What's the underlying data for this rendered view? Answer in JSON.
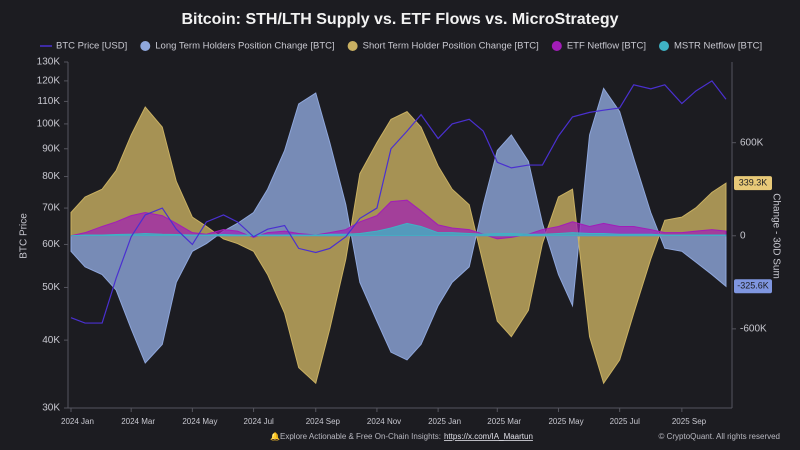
{
  "chart_data": {
    "type": "area",
    "title": "Bitcoin: STH/LTH Supply vs. ETF Flows vs. MicroStrategy",
    "y_label": "BTC Price",
    "y2_label": "Change - 30D Sum",
    "footer": "Explore Actionable & Free On-Chain Insights:",
    "footer_link": "https://x.com/IA_Maartun",
    "copyright": "© CryptoQuant. All rights reserved",
    "log_y": true,
    "x": [
      "2024-01-01",
      "2024-01-15",
      "2024-02-01",
      "2024-02-15",
      "2024-03-01",
      "2024-03-15",
      "2024-04-01",
      "2024-04-15",
      "2024-05-01",
      "2024-05-15",
      "2024-06-01",
      "2024-06-15",
      "2024-07-01",
      "2024-07-15",
      "2024-08-01",
      "2024-08-15",
      "2024-09-01",
      "2024-09-15",
      "2024-10-01",
      "2024-10-15",
      "2024-11-01",
      "2024-11-15",
      "2024-12-01",
      "2024-12-15",
      "2025-01-01",
      "2025-01-15",
      "2025-02-01",
      "2025-02-15",
      "2025-03-01",
      "2025-03-15",
      "2025-04-01",
      "2025-04-15",
      "2025-05-01",
      "2025-05-15",
      "2025-06-01",
      "2025-06-15",
      "2025-07-01",
      "2025-07-15",
      "2025-08-01",
      "2025-08-15",
      "2025-09-01",
      "2025-09-15",
      "2025-10-01",
      "2025-10-15"
    ],
    "xlim": [
      "2023-12-29",
      "2025-10-21"
    ],
    "xticks": [
      {
        "value": "2024-01-01",
        "label": "2024 Jan"
      },
      {
        "value": "2024-03-01",
        "label": "2024 Mar"
      },
      {
        "value": "2024-05-01",
        "label": "2024 May"
      },
      {
        "value": "2024-07-01",
        "label": "2024 Jul"
      },
      {
        "value": "2024-09-01",
        "label": "2024 Sep"
      },
      {
        "value": "2024-11-01",
        "label": "2024 Nov"
      },
      {
        "value": "2025-01-01",
        "label": "2025 Jan"
      },
      {
        "value": "2025-03-01",
        "label": "2025 Mar"
      },
      {
        "value": "2025-05-01",
        "label": "2025 May"
      },
      {
        "value": "2025-07-01",
        "label": "2025 Jul"
      },
      {
        "value": "2025-09-01",
        "label": "2025 Sep"
      }
    ],
    "ylim": [
      30000,
      130000
    ],
    "yticks": [
      {
        "value": 30000,
        "label": "30K"
      },
      {
        "value": 40000,
        "label": "40K"
      },
      {
        "value": 50000,
        "label": "50K"
      },
      {
        "value": 60000,
        "label": "60K"
      },
      {
        "value": 70000,
        "label": "70K"
      },
      {
        "value": 80000,
        "label": "80K"
      },
      {
        "value": 90000,
        "label": "90K"
      },
      {
        "value": 100000,
        "label": "100K"
      },
      {
        "value": 110000,
        "label": "110K"
      },
      {
        "value": 120000,
        "label": "120K"
      },
      {
        "value": 130000,
        "label": "130K"
      }
    ],
    "y2lim": [
      -1110000,
      1120000
    ],
    "y2ticks": [
      {
        "value": -600000,
        "label": "-600K"
      },
      0,
      {
        "value": 600000,
        "label": "600K"
      }
    ],
    "series": [
      {
        "name": "BTC Price [USD]",
        "color": "#4a30d0",
        "axis": "y",
        "kind": "line",
        "values": [
          44000,
          43000,
          43000,
          52000,
          62000,
          68000,
          70000,
          64000,
          60000,
          66000,
          68000,
          66000,
          62000,
          64000,
          65000,
          59000,
          58000,
          59000,
          62000,
          67000,
          70000,
          90000,
          97000,
          104000,
          94000,
          100000,
          102000,
          97000,
          85000,
          83000,
          84000,
          84000,
          95000,
          103000,
          105000,
          106000,
          107000,
          118000,
          116000,
          118000,
          109000,
          115000,
          120000,
          111000
        ]
      },
      {
        "name": "Long Term Holders Position Change [BTC]",
        "color": "#8fa7dc",
        "axis": "y2",
        "kind": "area",
        "values": [
          -100000,
          -200000,
          -250000,
          -350000,
          -600000,
          -820000,
          -700000,
          -300000,
          -100000,
          -50000,
          30000,
          80000,
          150000,
          300000,
          550000,
          850000,
          920000,
          600000,
          200000,
          -300000,
          -550000,
          -750000,
          -800000,
          -700000,
          -450000,
          -300000,
          -200000,
          200000,
          550000,
          650000,
          480000,
          80000,
          -250000,
          -450000,
          650000,
          950000,
          800000,
          500000,
          150000,
          -80000,
          -100000,
          -170000,
          -250000,
          -325600
        ],
        "value_labels": [
          null,
          null,
          null,
          null,
          null,
          null,
          null,
          null,
          null,
          null,
          null,
          null,
          null,
          null,
          null,
          null,
          null,
          null,
          null,
          null,
          null,
          null,
          null,
          null,
          null,
          null,
          null,
          null,
          null,
          null,
          null,
          null,
          null,
          null,
          null,
          null,
          null,
          null,
          null,
          null,
          null,
          null,
          null,
          "-325.6K"
        ]
      },
      {
        "name": "Short Term Holder Position Change [BTC]",
        "color": "#c9b062",
        "axis": "y2",
        "kind": "area",
        "values": [
          150000,
          250000,
          300000,
          420000,
          650000,
          830000,
          700000,
          350000,
          120000,
          60000,
          -20000,
          -50000,
          -100000,
          -250000,
          -500000,
          -850000,
          -950000,
          -600000,
          -150000,
          400000,
          600000,
          750000,
          800000,
          700000,
          450000,
          300000,
          200000,
          -180000,
          -550000,
          -650000,
          -480000,
          -50000,
          250000,
          300000,
          -650000,
          -950000,
          -800000,
          -500000,
          -150000,
          100000,
          120000,
          180000,
          280000,
          339300
        ],
        "value_labels": [
          null,
          null,
          null,
          null,
          null,
          null,
          null,
          null,
          null,
          null,
          null,
          null,
          null,
          null,
          null,
          null,
          null,
          null,
          null,
          null,
          null,
          null,
          null,
          null,
          null,
          null,
          null,
          null,
          null,
          null,
          null,
          null,
          null,
          null,
          null,
          null,
          null,
          null,
          null,
          null,
          null,
          null,
          null,
          "339.3K"
        ]
      },
      {
        "name": "ETF Netflow [BTC]",
        "color": "#a21db8",
        "axis": "y2",
        "kind": "area",
        "values": [
          0,
          20000,
          60000,
          90000,
          130000,
          150000,
          130000,
          80000,
          20000,
          10000,
          40000,
          30000,
          -10000,
          20000,
          30000,
          15000,
          5000,
          20000,
          40000,
          90000,
          130000,
          220000,
          230000,
          160000,
          70000,
          50000,
          40000,
          10000,
          -20000,
          -10000,
          10000,
          40000,
          60000,
          90000,
          60000,
          80000,
          60000,
          60000,
          40000,
          20000,
          20000,
          30000,
          40000,
          30000
        ]
      },
      {
        "name": "MSTR Netflow [BTC]",
        "color": "#3fb2c4",
        "axis": "y2",
        "kind": "area",
        "values": [
          0,
          5000,
          5000,
          8000,
          10000,
          15000,
          10000,
          8000,
          5000,
          5000,
          8000,
          5000,
          5000,
          5000,
          5000,
          5000,
          5000,
          10000,
          10000,
          15000,
          30000,
          50000,
          80000,
          60000,
          20000,
          20000,
          15000,
          10000,
          15000,
          15000,
          10000,
          10000,
          15000,
          20000,
          15000,
          15000,
          10000,
          10000,
          10000,
          5000,
          5000,
          5000,
          5000,
          5000
        ]
      }
    ]
  }
}
